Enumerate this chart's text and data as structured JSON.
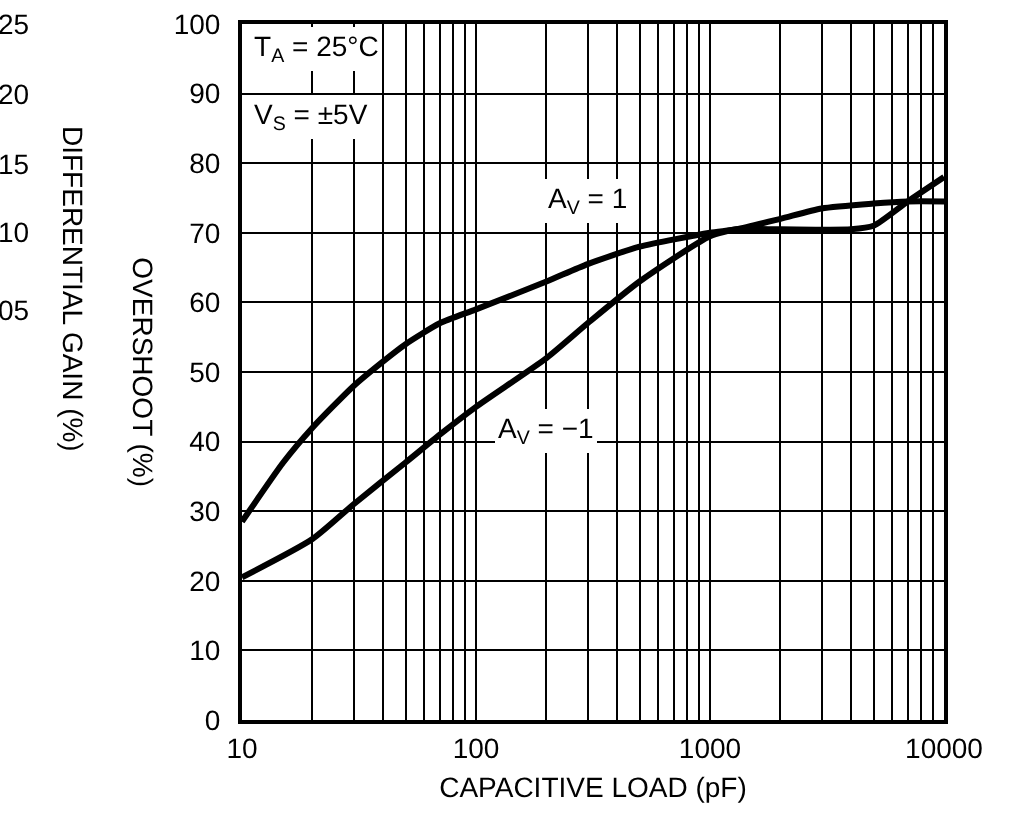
{
  "chart_data": {
    "type": "line",
    "xlabel": "CAPACITIVE LOAD (pF)",
    "ylabel": "OVERSHOOT (%)",
    "log": "x",
    "grid": true,
    "legend": false,
    "xlim": [
      10,
      10000
    ],
    "xticks": [
      10,
      100,
      1000,
      10000
    ],
    "ylim": [
      0,
      100
    ],
    "yticks": [
      0,
      10,
      20,
      30,
      40,
      50,
      60,
      70,
      80,
      90,
      100
    ],
    "series": [
      {
        "name": "A$_{V}$ = 1",
        "color": "#000000",
        "x": [
          10,
          15,
          20,
          30,
          40,
          50,
          70,
          100,
          200,
          300,
          500,
          1000,
          1300,
          2000,
          3000,
          5000,
          7000,
          10000
        ],
        "values": [
          28.5,
          37,
          42,
          48,
          51.5,
          54,
          57,
          59,
          63,
          65.5,
          68,
          70,
          70.5,
          72,
          73.5,
          74.2,
          74.5,
          74.5
        ]
      },
      {
        "name": "A$_{V}$ = −1",
        "color": "#000000",
        "x": [
          10,
          20,
          30,
          50,
          70,
          100,
          200,
          300,
          500,
          1000,
          1300,
          2000,
          4000,
          5000,
          7000,
          10000
        ],
        "values": [
          20.5,
          26,
          31,
          37,
          41,
          45,
          52,
          57,
          63,
          69.5,
          70.5,
          70.5,
          70.5,
          71,
          74.5,
          78
        ]
      }
    ],
    "annotations": [
      "T$_{A}$ = 25°C",
      "V$_{S}$ = ±5V",
      "25",
      "20",
      "15",
      "10",
      "05",
      "DIFFERENTIAL GAIN (%)"
    ]
  }
}
